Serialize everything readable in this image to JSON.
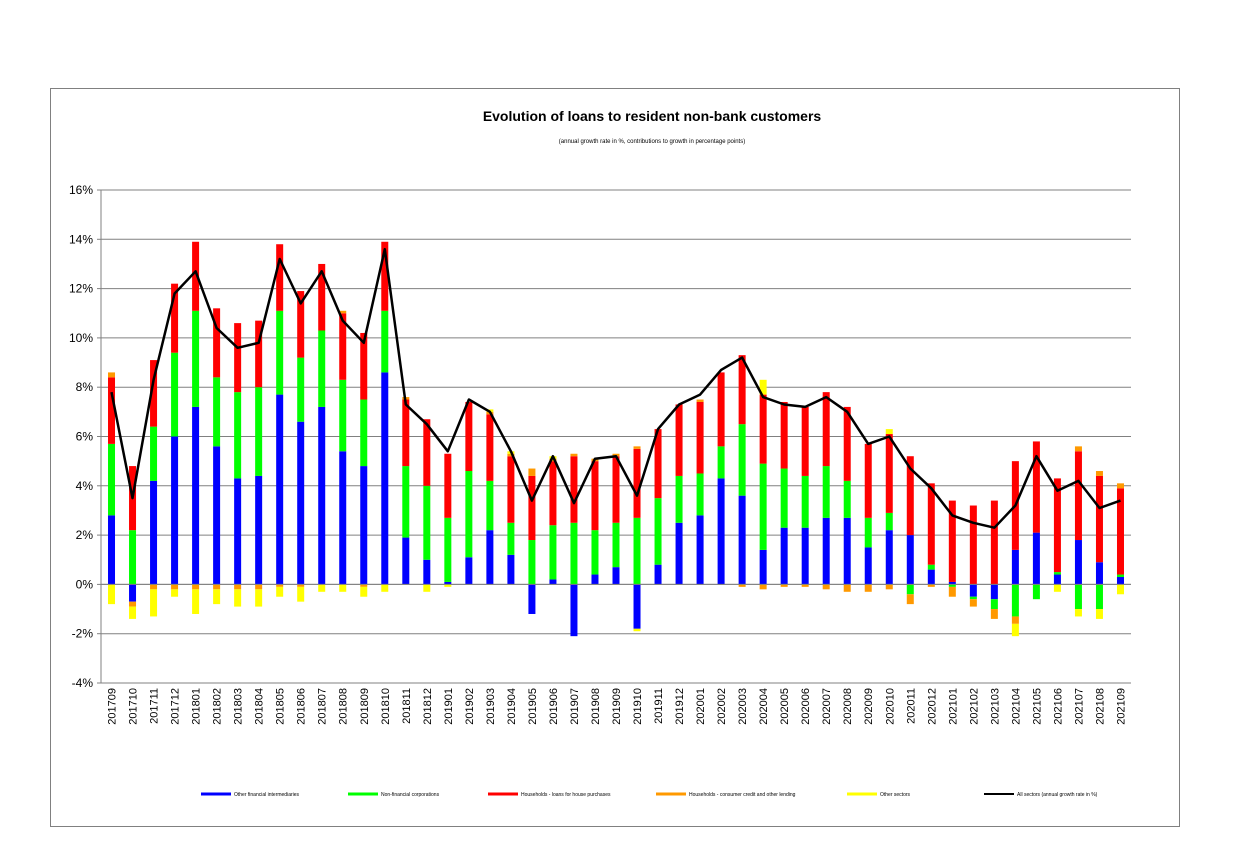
{
  "chart_data": {
    "type": "bar",
    "title": "Evolution of loans to resident non-bank customers",
    "subtitle": "(annual growth rate in %, contributions to growth in percentage points)",
    "ylim": [
      -4,
      16
    ],
    "ytick_step": 2,
    "y_unit": "%",
    "grid": true,
    "legend_position": "bottom",
    "categories": [
      "201709",
      "201710",
      "201711",
      "201712",
      "201801",
      "201802",
      "201803",
      "201804",
      "201805",
      "201806",
      "201807",
      "201808",
      "201809",
      "201810",
      "201811",
      "201812",
      "201901",
      "201902",
      "201903",
      "201904",
      "201905",
      "201906",
      "201907",
      "201908",
      "201909",
      "201910",
      "201911",
      "201912",
      "202001",
      "202002",
      "202003",
      "202004",
      "202005",
      "202006",
      "202007",
      "202008",
      "202009",
      "202010",
      "202011",
      "202012",
      "202101",
      "202102",
      "202103",
      "202104",
      "202105",
      "202106",
      "202107",
      "202108",
      "202109"
    ],
    "series": [
      {
        "name": "Other financial intermediaries",
        "color": "#0000FF",
        "kind": "bar",
        "values": [
          2.8,
          -0.7,
          4.2,
          6.0,
          7.2,
          5.6,
          4.3,
          4.4,
          7.7,
          6.6,
          7.2,
          5.4,
          4.8,
          8.6,
          1.9,
          1.0,
          0.1,
          1.1,
          2.2,
          1.2,
          -1.2,
          0.2,
          -2.1,
          0.4,
          0.7,
          -1.8,
          0.8,
          2.5,
          2.8,
          4.3,
          3.6,
          1.4,
          2.3,
          2.3,
          2.7,
          2.7,
          1.5,
          2.2,
          2.0,
          0.6,
          0.1,
          -0.5,
          -0.6,
          1.4,
          2.1,
          0.4,
          1.8,
          0.9,
          0.3
        ]
      },
      {
        "name": "Non-financial corporations",
        "color": "#00FF00",
        "kind": "bar",
        "values": [
          2.9,
          2.2,
          2.2,
          3.4,
          3.9,
          2.8,
          3.5,
          3.6,
          3.4,
          2.6,
          3.1,
          2.9,
          2.7,
          2.5,
          2.9,
          3.0,
          2.6,
          3.5,
          2.0,
          1.3,
          1.8,
          2.2,
          2.5,
          1.8,
          1.8,
          2.7,
          2.7,
          1.9,
          1.7,
          1.3,
          2.9,
          3.5,
          2.4,
          2.1,
          2.1,
          1.5,
          1.2,
          0.7,
          -0.4,
          0.2,
          -0.1,
          -0.1,
          -0.4,
          -1.3,
          -0.6,
          0.1,
          -1.0,
          -1.0,
          0.1
        ]
      },
      {
        "name": "Households - loans for house purchases",
        "color": "#FF0000",
        "kind": "bar",
        "values": [
          2.7,
          2.6,
          2.7,
          2.8,
          2.8,
          2.8,
          2.8,
          2.7,
          2.7,
          2.7,
          2.7,
          2.7,
          2.7,
          2.8,
          2.7,
          2.7,
          2.6,
          2.8,
          2.7,
          2.7,
          2.6,
          2.6,
          2.7,
          2.8,
          2.7,
          2.8,
          2.8,
          2.9,
          2.9,
          3.0,
          2.8,
          2.8,
          2.7,
          2.8,
          3.0,
          3.0,
          3.0,
          3.2,
          3.2,
          3.3,
          3.3,
          3.2,
          3.4,
          3.6,
          3.7,
          3.8,
          3.6,
          3.5,
          3.5
        ]
      },
      {
        "name": "Households - consumer credit and other lending",
        "color": "#FF9900",
        "kind": "bar",
        "values": [
          0.2,
          -0.2,
          -0.2,
          -0.2,
          -0.2,
          -0.2,
          -0.2,
          -0.2,
          -0.1,
          -0.1,
          0.0,
          0.1,
          -0.1,
          0.0,
          0.1,
          0.0,
          0.0,
          0.0,
          0.1,
          0.1,
          0.3,
          0.1,
          0.1,
          0.1,
          0.1,
          0.1,
          0.0,
          0.0,
          0.1,
          0.0,
          -0.1,
          -0.2,
          -0.1,
          -0.1,
          -0.2,
          -0.3,
          -0.3,
          -0.2,
          -0.4,
          -0.1,
          -0.4,
          -0.3,
          -0.4,
          -0.3,
          0.0,
          0.0,
          0.2,
          0.2,
          0.2
        ]
      },
      {
        "name": "Other sectors",
        "color": "#FFFF00",
        "kind": "bar",
        "values": [
          -0.8,
          -0.5,
          -1.1,
          -0.3,
          -1.0,
          -0.6,
          -0.7,
          -0.7,
          -0.4,
          -0.6,
          -0.3,
          -0.3,
          -0.4,
          -0.3,
          0.0,
          -0.3,
          -0.1,
          0.0,
          0.1,
          0.1,
          0.0,
          0.1,
          0.0,
          0.0,
          0.0,
          -0.1,
          0.0,
          0.0,
          0.0,
          0.0,
          0.0,
          0.6,
          0.0,
          0.0,
          0.0,
          0.0,
          0.0,
          0.2,
          0.0,
          0.0,
          0.0,
          0.0,
          0.0,
          -0.5,
          0.0,
          -0.3,
          -0.3,
          -0.4,
          -0.4
        ]
      },
      {
        "name": "All sectors (annual growth rate in %)",
        "color": "#000000",
        "kind": "line",
        "values": [
          7.8,
          3.5,
          8.3,
          11.8,
          12.7,
          10.4,
          9.6,
          9.8,
          13.2,
          11.4,
          12.7,
          10.7,
          9.8,
          13.6,
          7.3,
          6.5,
          5.4,
          7.5,
          7.0,
          5.4,
          3.4,
          5.2,
          3.3,
          5.1,
          5.2,
          3.6,
          6.3,
          7.3,
          7.7,
          8.7,
          9.2,
          7.6,
          7.3,
          7.2,
          7.6,
          7.0,
          5.7,
          6.0,
          4.7,
          3.9,
          2.8,
          2.5,
          2.3,
          3.2,
          5.2,
          3.8,
          4.2,
          3.1,
          3.4
        ]
      }
    ]
  }
}
